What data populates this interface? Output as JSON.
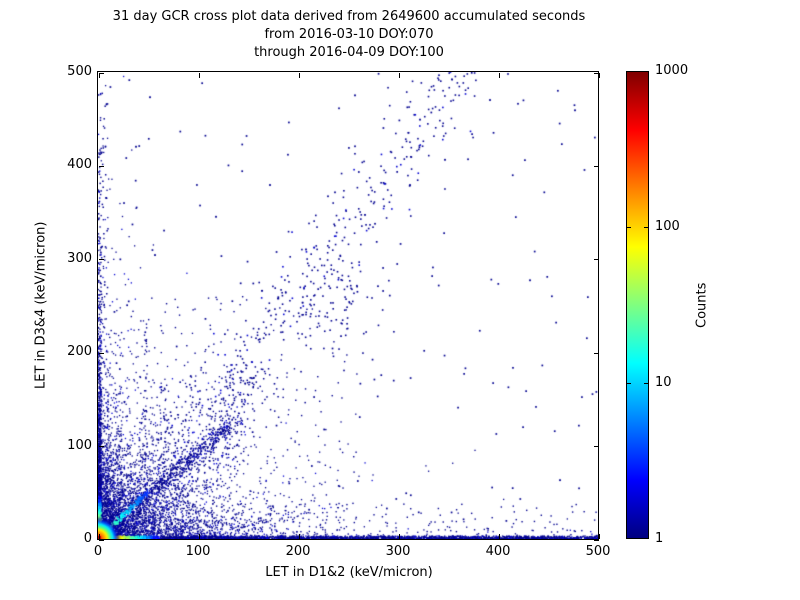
{
  "title": {
    "line1": "31 day GCR cross plot data derived from 2649600 accumulated seconds",
    "line2": "from 2016-03-10 DOY:070",
    "line3": "through 2016-04-09 DOY:100"
  },
  "axes": {
    "xlabel": "LET in D1&2 (keV/micron)",
    "ylabel": "LET in D3&4 (keV/micron)",
    "x_ticks": [
      "0",
      "100",
      "200",
      "300",
      "400",
      "500"
    ],
    "y_ticks": [
      "500",
      "400",
      "300",
      "200",
      "100",
      "0"
    ],
    "xlim": [
      0,
      500
    ],
    "ylim": [
      0,
      500
    ]
  },
  "colorbar": {
    "label": "Counts",
    "ticks": [
      "1000",
      "100",
      "10",
      "1"
    ],
    "min": 1,
    "max": 1000,
    "scale": "log",
    "colormap": "jet"
  },
  "chart_data": {
    "type": "scatter",
    "title": "31 day GCR cross plot data derived from 2649600 accumulated seconds from 2016-03-10 DOY:070 through 2016-04-09 DOY:100",
    "xlabel": "LET in D1&2 (keV/micron)",
    "ylabel": "LET in D3&4 (keV/micron)",
    "xlim": [
      0,
      500
    ],
    "ylim": [
      0,
      500
    ],
    "grid": false,
    "colorbar": {
      "label": "Counts",
      "min": 1,
      "max": 1000,
      "scale": "log",
      "colormap": "jet"
    },
    "point_color": "#00008f",
    "description": "2D density cross plot, counts color-coded on a log jet scale (1=dark blue to 1000=dark red). Hot red/orange/yellow core of >100-1000 counts at the origin; colored high-count strips hug both axes out to ~60 keV/micron; a bright cyan-green coincidence streak runs along y=x from the origin to ~(50,50) continuing as a dense blue diagonal band; a diffuse blue band of slope ~1.35 extends from ~(60,80) up to ~(370,500) with a knot near (230,250); sparse single-count navy points scatter over the rest of the plane, densest in the lower-left and along the axes.",
    "components": [
      {
        "kind": "exp_cloud",
        "n": 3200,
        "sx": 55,
        "sy": 40,
        "s": 1.3
      },
      {
        "kind": "exp_cloud",
        "n": 900,
        "sx": 12,
        "sy": 95,
        "s": 1.3
      },
      {
        "kind": "exp_cloud",
        "n": 500,
        "sx": 95,
        "sy": 12,
        "s": 1.3
      },
      {
        "kind": "uniform",
        "n": 170,
        "x": [
          0,
          500
        ],
        "y": [
          0,
          500
        ],
        "s": 1.7
      },
      {
        "kind": "uniform",
        "n": 240,
        "x": [
          0,
          260
        ],
        "y": [
          0,
          260
        ],
        "s": 1.4
      },
      {
        "kind": "uniform",
        "n": 150,
        "x": [
          0,
          500
        ],
        "y": [
          0,
          38
        ],
        "s": 1.4
      },
      {
        "kind": "uniform",
        "n": 55,
        "x": [
          0,
          10
        ],
        "y": [
          250,
          495
        ],
        "s": 1.5
      },
      {
        "kind": "band",
        "n": 520,
        "xr": [
          15,
          132
        ],
        "slope": 0.92,
        "sigma": 6.5,
        "s": 1.4
      },
      {
        "kind": "band",
        "n": 520,
        "xr": [
          5,
          150
        ],
        "slope": 0.9,
        "sigma": 26,
        "s": 1.4
      },
      {
        "kind": "band",
        "n": 360,
        "xr": [
          60,
          378
        ],
        "slope": 1.35,
        "sigma": 28,
        "s": 1.6
      },
      {
        "kind": "gauss",
        "n": 110,
        "c": [
          228,
          252
        ],
        "sd": [
          24,
          30
        ],
        "s": 1.6
      },
      {
        "kind": "gauss",
        "n": 70,
        "c": [
          150,
          162
        ],
        "sd": [
          18,
          20
        ],
        "s": 1.5
      },
      {
        "kind": "vline",
        "n": 48,
        "x": 48,
        "jx": 1.1,
        "yr": [
          5,
          235
        ],
        "s": 1.4
      },
      {
        "kind": "vline",
        "n": 24,
        "x": 67,
        "jx": 1.1,
        "yr": [
          5,
          165
        ],
        "s": 1.4
      },
      {
        "kind": "vline",
        "n": 26,
        "x": 22,
        "jx": 1.0,
        "yr": [
          5,
          120
        ],
        "s": 1.4
      },
      {
        "kind": "hline",
        "n": 18,
        "y": 64,
        "jy": 1.1,
        "xr": [
          0,
          16
        ],
        "s": 1.4
      },
      {
        "kind": "bottom_strip",
        "n": 1500,
        "h": 3.2,
        "len": 500,
        "ramp": 62,
        "bias": 1.12,
        "s": 1.4
      },
      {
        "kind": "bottom_strip",
        "n": 900,
        "h": 1.4,
        "len": 500,
        "ramp": 62,
        "bias": 1.05,
        "s": 1.4
      },
      {
        "kind": "left_strip",
        "n": 850,
        "w": 3.2,
        "sy": 95,
        "ramp": 46,
        "s": 1.4
      },
      {
        "kind": "streak",
        "n": 210,
        "rr": [
          2,
          50
        ],
        "jitter": 1.4,
        "s": 1.5
      },
      {
        "kind": "glow",
        "radius": 23
      }
    ],
    "extra_points": [
      [
        52,
        473
      ],
      [
        172,
        379
      ],
      [
        257,
        475
      ],
      [
        322,
        449
      ],
      [
        392,
        470
      ],
      [
        347,
        406
      ],
      [
        312,
        379
      ],
      [
        267,
        347
      ],
      [
        477,
        459
      ],
      [
        432,
        277
      ],
      [
        462,
        63
      ],
      [
        57,
        304
      ],
      [
        208,
        310
      ],
      [
        118,
        345
      ],
      [
        38,
        420
      ]
    ]
  }
}
